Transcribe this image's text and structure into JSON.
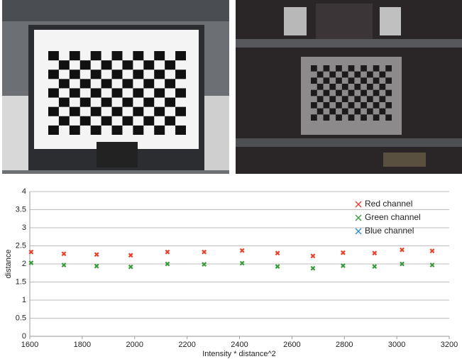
{
  "chart_data": {
    "type": "scatter",
    "xlabel": "Intensity * distance^2",
    "ylabel": "distance",
    "x": [
      1605,
      1730,
      1855,
      1985,
      2125,
      2265,
      2410,
      2545,
      2680,
      2795,
      2915,
      3020,
      3135
    ],
    "series": [
      {
        "name": "Red channel",
        "color": "#e8412c",
        "values": [
          2.33,
          2.28,
          2.26,
          2.24,
          2.33,
          2.33,
          2.37,
          2.3,
          2.22,
          2.31,
          2.3,
          2.39,
          2.36
        ]
      },
      {
        "name": "Green channel",
        "color": "#3a9a3c",
        "values": [
          2.03,
          1.97,
          1.94,
          1.92,
          2.0,
          1.99,
          2.02,
          1.93,
          1.88,
          1.95,
          1.93,
          2.0,
          1.97
        ]
      },
      {
        "name": "Blue channel",
        "color": "#2a8fc8",
        "values": [
          null,
          null,
          null,
          null,
          null,
          null,
          null,
          null,
          null,
          null,
          null,
          null,
          null
        ]
      }
    ],
    "xlim": [
      1600,
      3200
    ],
    "xticks": [
      1600,
      1800,
      2000,
      2200,
      2400,
      2600,
      2800,
      3000,
      3200
    ],
    "ylim": [
      0,
      4
    ],
    "yticks": [
      0,
      0.5,
      1,
      1.5,
      2,
      2.5,
      3,
      3.5,
      4
    ],
    "grid": true,
    "legend": "top-right"
  }
}
